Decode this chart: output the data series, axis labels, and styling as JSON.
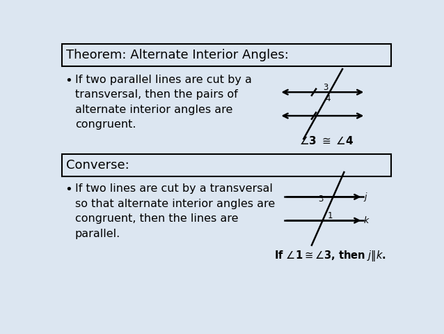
{
  "bg_color": "#dce6f1",
  "box_bg_color": "#dce6f1",
  "box_border_color": "#000000",
  "text_color": "#000000",
  "title1": "Theorem: Alternate Interior Angles:",
  "title2": "Converse:",
  "bullet1_lines": [
    "If two parallel lines are cut by a",
    "transversal, then the pairs of",
    "alternate interior angles are",
    "congruent."
  ],
  "bullet2_lines": [
    "If two lines are cut by a transversal",
    "so that alternate interior angles are",
    "congruent, then the lines are",
    "parallel."
  ],
  "title_fontsize": 13,
  "bullet_fontsize": 11.5,
  "formula_fontsize": 11,
  "formula2_fontsize": 10.5
}
